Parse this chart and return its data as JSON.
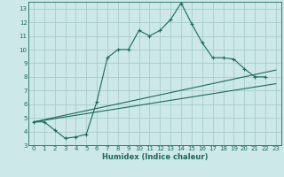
{
  "xlabel": "Humidex (Indice chaleur)",
  "ylabel": "",
  "bg_color": "#cce8e8",
  "line_color": "#1a6b5a",
  "xlim": [
    -0.5,
    23.5
  ],
  "ylim": [
    3,
    13.5
  ],
  "xticks": [
    0,
    1,
    2,
    3,
    4,
    5,
    6,
    7,
    8,
    9,
    10,
    11,
    12,
    13,
    14,
    15,
    16,
    17,
    18,
    19,
    20,
    21,
    22,
    23
  ],
  "yticks": [
    3,
    4,
    5,
    6,
    7,
    8,
    9,
    10,
    11,
    12,
    13
  ],
  "curve1_x": [
    0,
    1,
    2,
    3,
    4,
    5,
    6,
    7,
    8,
    9,
    10,
    11,
    12,
    13,
    14,
    15,
    16,
    17,
    18,
    19,
    20,
    21,
    22
  ],
  "curve1_y": [
    4.7,
    4.7,
    4.1,
    3.5,
    3.6,
    3.8,
    6.2,
    9.4,
    10.0,
    10.0,
    11.4,
    11.0,
    11.4,
    12.2,
    13.4,
    11.9,
    10.5,
    9.4,
    9.4,
    9.3,
    8.6,
    8.0,
    8.0
  ],
  "curve2_x": [
    0,
    23
  ],
  "curve2_y": [
    4.7,
    7.5
  ],
  "curve3_x": [
    0,
    23
  ],
  "curve3_y": [
    4.7,
    8.5
  ],
  "grid_color": "#aacccc",
  "grid_lw": 0.6
}
